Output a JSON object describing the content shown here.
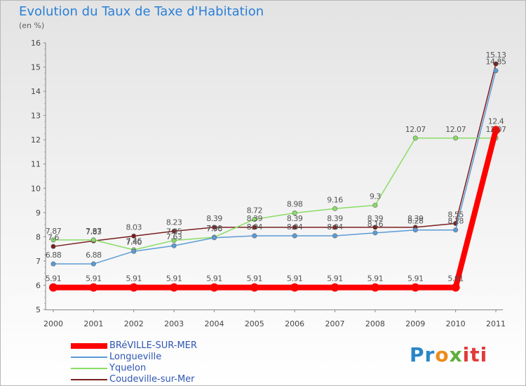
{
  "header": {
    "title": "Evolution du Taux de Taxe d'Habitation",
    "unit": "(en %)"
  },
  "logo": {
    "text": "Proxiti",
    "colors": [
      "#2a86c8",
      "#ee8a1c",
      "#5bb03a",
      "#e23b3b"
    ]
  },
  "chart_data": {
    "type": "line",
    "title": "Evolution du Taux de Taxe d'Habitation",
    "ylabel": "(en %)",
    "xlabel": "",
    "ylim": [
      5,
      16
    ],
    "yticks": [
      5,
      6,
      7,
      8,
      9,
      10,
      11,
      12,
      13,
      14,
      15,
      16
    ],
    "x": [
      "2000",
      "2001",
      "2002",
      "2003",
      "2004",
      "2005",
      "2006",
      "2007",
      "2008",
      "2009",
      "2010",
      "2011"
    ],
    "grid": false,
    "legend_position": "bottom-left",
    "series": [
      {
        "name": "BRéVILLE-SUR-MER",
        "color": "#ff0000",
        "values": [
          5.91,
          5.91,
          5.91,
          5.91,
          5.91,
          5.91,
          5.91,
          5.91,
          5.91,
          5.91,
          5.91,
          12.4
        ],
        "labels": [
          "5.91",
          "5.91",
          "5.91",
          "5.91",
          "5.91",
          "5.91",
          "5.91",
          "5.91",
          "5.91",
          "5.91",
          "5.91",
          "12.4"
        ]
      },
      {
        "name": "Longueville",
        "color": "#5b9bd5",
        "values": [
          6.88,
          6.88,
          7.4,
          7.63,
          7.96,
          8.04,
          8.04,
          8.04,
          8.16,
          8.28,
          8.28,
          14.85
        ],
        "labels": [
          "6.88",
          "6.88",
          "7.40",
          "7.63",
          "7.96",
          "8.04",
          "8.04",
          "8.04",
          "8.16",
          "8.28",
          "8.28",
          "14.85"
        ]
      },
      {
        "name": "Yquelon",
        "color": "#88dd66",
        "values": [
          7.87,
          7.87,
          7.46,
          7.85,
          7.98,
          8.72,
          8.98,
          9.16,
          9.3,
          12.07,
          12.07,
          12.07
        ],
        "labels": [
          "7.87",
          "7.87",
          "7.46",
          "7.85",
          "7.98",
          "8.72",
          "8.98",
          "9.16",
          "9.3",
          "12.07",
          "12.07",
          "12.07"
        ]
      },
      {
        "name": "Coudeville-sur-Mer",
        "color": "#7a1f1f",
        "values": [
          7.6,
          7.83,
          8.03,
          8.23,
          8.39,
          8.39,
          8.39,
          8.39,
          8.39,
          8.39,
          8.55,
          15.13
        ],
        "labels": [
          "7.6",
          "7.83",
          "8.03",
          "8.23",
          "8.39",
          "8.39",
          "8.39",
          "8.39",
          "8.39",
          "8.39",
          "8.55",
          "15.13"
        ]
      }
    ]
  }
}
